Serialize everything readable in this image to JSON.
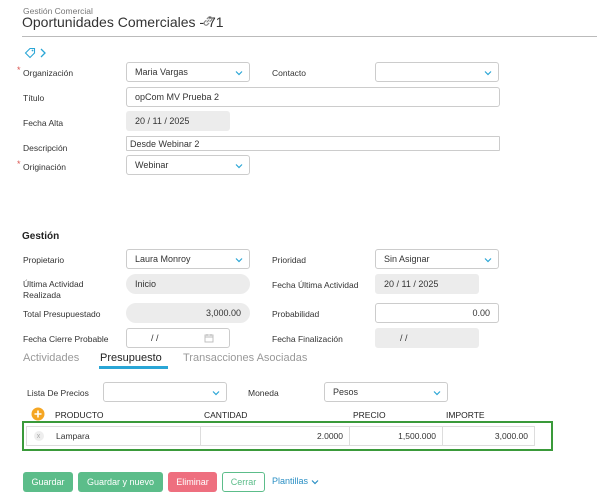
{
  "header": {
    "breadcrumb": "Gestión Comercial",
    "title": "Oportunidades Comerciales - 71"
  },
  "form": {
    "organizacion": {
      "label": "Organización",
      "value": "Maria Vargas"
    },
    "contacto": {
      "label": "Contacto",
      "value": ""
    },
    "titulo": {
      "label": "Título",
      "value": "opCom MV Prueba 2"
    },
    "fecha_alta": {
      "label": "Fecha Alta",
      "value": "20 / 11 / 2025"
    },
    "descripcion": {
      "label": "Descripción",
      "value": "Desde Webinar 2"
    },
    "originacion": {
      "label": "Originación",
      "value": "Webinar"
    }
  },
  "gestion": {
    "title": "Gestión",
    "propietario": {
      "label": "Propietario",
      "value": "Laura Monroy"
    },
    "prioridad": {
      "label": "Prioridad",
      "value": "Sin Asignar"
    },
    "ultima_actividad": {
      "label_line1": "Última Actividad",
      "label_line2": "Realizada",
      "value": "Inicio"
    },
    "fecha_ultima_actividad": {
      "label": "Fecha Última Actividad",
      "value": "20 / 11 / 2025"
    },
    "total_presupuestado": {
      "label": "Total Presupuestado",
      "value": "3,000.00"
    },
    "probabilidad": {
      "label": "Probabilidad",
      "value": "0.00"
    },
    "fecha_cierre": {
      "label": "Fecha Cierre Probable",
      "value": "/     /"
    },
    "fecha_finalizacion": {
      "label": "Fecha Finalización",
      "value": "/     /"
    }
  },
  "tabs": [
    {
      "label": "Actividades",
      "active": false
    },
    {
      "label": "Presupuesto",
      "active": true
    },
    {
      "label": "Transacciones Asociadas",
      "active": false
    }
  ],
  "presupuesto": {
    "lista_precios": {
      "label": "Lista De Precios",
      "value": ""
    },
    "moneda": {
      "label": "Moneda",
      "value": "Pesos"
    },
    "columns": [
      "PRODUCTO",
      "CANTIDAD",
      "PRECIO",
      "IMPORTE"
    ],
    "rows": [
      {
        "remove": "x",
        "producto": "Lampara",
        "cantidad": "2.0000",
        "precio": "1,500.000",
        "importe": "3,000.00"
      }
    ],
    "add_icon": "plus-circle-icon"
  },
  "buttons": {
    "guardar": "Guardar",
    "guardar_nuevo": "Guardar y nuevo",
    "eliminar": "Eliminar",
    "cerrar": "Cerrar",
    "plantillas": "Plantillas"
  },
  "colors": {
    "accent_blue": "#2aa6d6",
    "green": "#5cbd8a",
    "red": "#ee6f7f",
    "highlight_box": "#3a9a3a",
    "add_icon": "#f5a623"
  }
}
